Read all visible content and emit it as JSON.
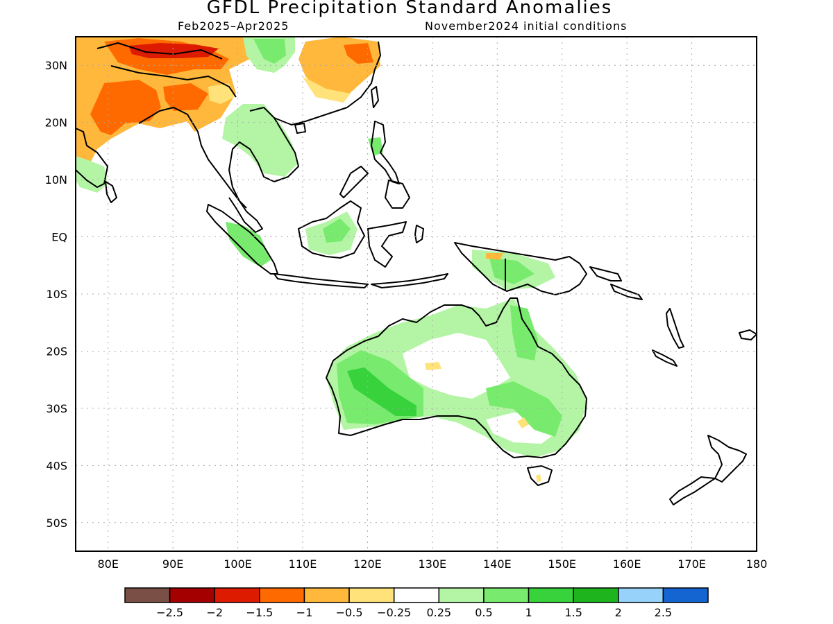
{
  "title": "GFDL Precipitation Standard Anomalies",
  "period": "Feb2025–Apr2025",
  "initial_conditions": "November2024 initial conditions",
  "map": {
    "lon_range": [
      75,
      180
    ],
    "lat_range": [
      -55,
      35
    ],
    "lat_labels": [
      "30N",
      "20N",
      "10N",
      "EQ",
      "10S",
      "20S",
      "30S",
      "40S",
      "50S"
    ],
    "lon_labels": [
      "80E",
      "90E",
      "100E",
      "110E",
      "120E",
      "130E",
      "140E",
      "150E",
      "160E",
      "170E",
      "180"
    ],
    "gridlines": "dotted"
  },
  "colorbar": {
    "colors": [
      "#7a4f45",
      "#a50000",
      "#dd1b00",
      "#ff6a00",
      "#ffb83c",
      "#ffe27a",
      "#ffffff",
      "#b4f5a5",
      "#78eb6e",
      "#37d23c",
      "#1eb41e",
      "#96d2fa",
      "#1464d2"
    ],
    "tick_labels": [
      "−2.5",
      "−2",
      "−1.5",
      "−1",
      "−0.5",
      "−0.25",
      "0.25",
      "0.5",
      "1",
      "1.5",
      "2",
      "2.5"
    ]
  },
  "colors": {
    "land_outline": "#000000",
    "gridline": "#aaaaaa"
  }
}
